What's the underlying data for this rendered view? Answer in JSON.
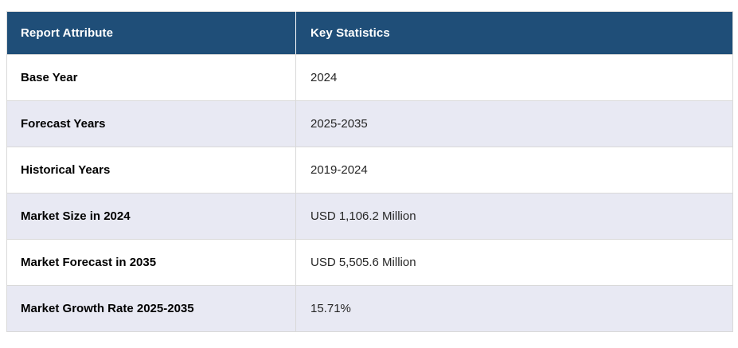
{
  "page": {
    "background": "#ffffff"
  },
  "table": {
    "columns": [
      {
        "label": "Report Attribute"
      },
      {
        "label": "Key Statistics"
      }
    ],
    "rows": [
      {
        "attribute": "Base Year",
        "value": "2024"
      },
      {
        "attribute": "Forecast Years",
        "value": "2025-2035"
      },
      {
        "attribute": "Historical Years",
        "value": "2019-2024"
      },
      {
        "attribute": "Market Size in 2024",
        "value": "USD 1,106.2 Million"
      },
      {
        "attribute": "Market Forecast in 2035",
        "value": "USD 5,505.6 Million"
      },
      {
        "attribute": "Market Growth Rate 2025-2035",
        "value": "15.71%"
      }
    ],
    "colors": {
      "header_background": "#1f4e78",
      "header_text": "#ffffff",
      "row_background": "#ffffff",
      "row_alt_background": "#e8e9f3",
      "border": "#d9d9d9",
      "outer_border": "#d9d9d9",
      "header_divider": "#ffffff",
      "attribute_text": "#000000",
      "value_text": "#262626",
      "page_background": "#ffffff"
    }
  }
}
